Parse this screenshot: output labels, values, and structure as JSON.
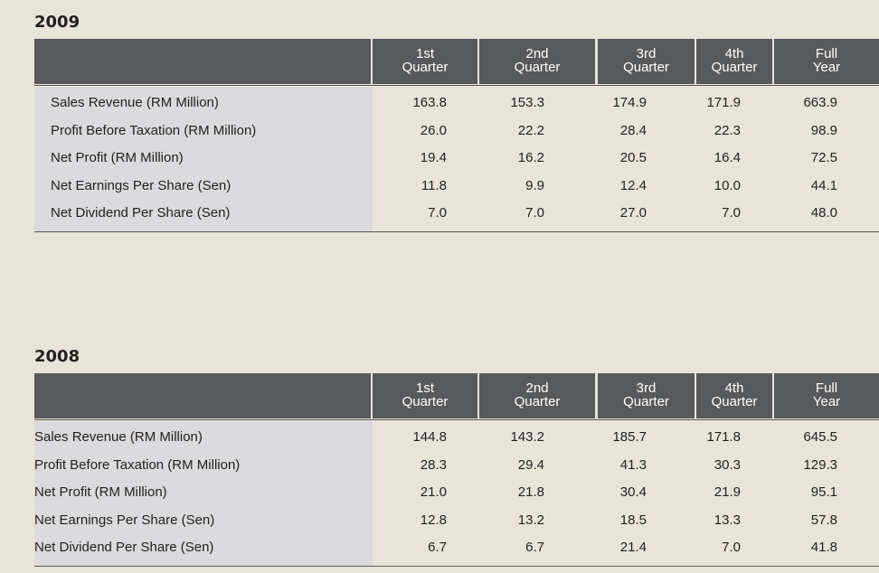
{
  "tables": [
    {
      "year": "2009",
      "columns": [
        {
          "line1": "1st",
          "line2": "Quarter"
        },
        {
          "line1": "2nd",
          "line2": "Quarter"
        },
        {
          "line1": "3rd",
          "line2": "Quarter"
        },
        {
          "line1": "4th",
          "line2": "Quarter"
        },
        {
          "line1": "Full",
          "line2": "Year"
        }
      ],
      "rows": [
        {
          "label": "Sales Revenue (RM Million)",
          "values": [
            "163.8",
            "153.3",
            "174.9",
            "171.9",
            "663.9"
          ]
        },
        {
          "label": "Profit Before Taxation (RM Million)",
          "values": [
            "26.0",
            "22.2",
            "28.4",
            "22.3",
            "98.9"
          ]
        },
        {
          "label": "Net Profit (RM Million)",
          "values": [
            "19.4",
            "16.2",
            "20.5",
            "16.4",
            "72.5"
          ]
        },
        {
          "label": "Net Earnings Per Share (Sen)",
          "values": [
            "11.8",
            "9.9",
            "12.4",
            "10.0",
            "44.1"
          ]
        },
        {
          "label": "Net Dividend Per Share (Sen)",
          "values": [
            "7.0",
            "7.0",
            "27.0",
            "7.0",
            "48.0"
          ]
        }
      ]
    },
    {
      "year": "2008",
      "columns": [
        {
          "line1": "1st",
          "line2": "Quarter"
        },
        {
          "line1": "2nd",
          "line2": "Quarter"
        },
        {
          "line1": "3rd",
          "line2": "Quarter"
        },
        {
          "line1": "4th",
          "line2": "Quarter"
        },
        {
          "line1": "Full",
          "line2": "Year"
        }
      ],
      "rows": [
        {
          "label": "Sales Revenue (RM Million)",
          "values": [
            "144.8",
            "143.2",
            "185.7",
            "171.8",
            "645.5"
          ]
        },
        {
          "label": "Profit Before Taxation (RM Million)",
          "values": [
            "28.3",
            "29.4",
            "41.3",
            "30.3",
            "129.3"
          ]
        },
        {
          "label": "Net Profit (RM Million)",
          "values": [
            "21.0",
            "21.8",
            "30.4",
            "21.9",
            "95.1"
          ]
        },
        {
          "label": "Net Earnings Per Share (Sen)",
          "values": [
            "12.8",
            "13.2",
            "18.5",
            "13.3",
            "57.8"
          ]
        },
        {
          "label": "Net Dividend Per Share (Sen)",
          "values": [
            "6.7",
            "6.7",
            "21.4",
            "7.0",
            "41.8"
          ]
        }
      ]
    }
  ]
}
